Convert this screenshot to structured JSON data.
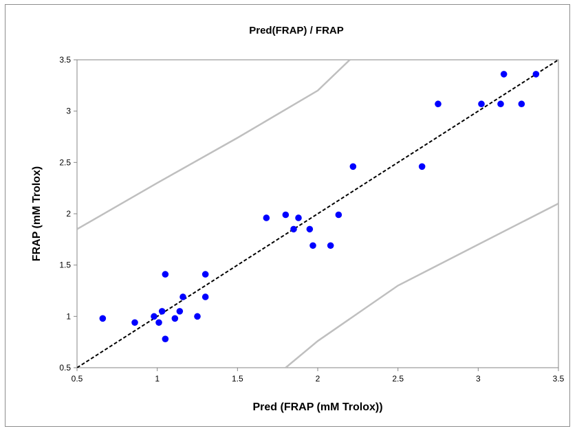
{
  "chart_data": {
    "type": "scatter",
    "title": "Pred(FRAP) / FRAP",
    "xlabel": "Pred (FRAP (mM Trolox))",
    "ylabel": "FRAP (mM Trolox)",
    "xlim": [
      0.5,
      3.5
    ],
    "ylim": [
      0.5,
      3.5
    ],
    "x_ticks": [
      "0.5",
      "1",
      "1.5",
      "2",
      "2.5",
      "3",
      "3.5"
    ],
    "y_ticks": [
      "0.5",
      "1",
      "1.5",
      "2",
      "2.5",
      "3",
      "3.5"
    ],
    "grid": false,
    "legend": "none",
    "colors": {
      "points": "#0000ff",
      "identity_line": "#000000",
      "bound_lines": "#bfbfbf"
    },
    "series": [
      {
        "values": [
          [
            0.66,
            0.98
          ],
          [
            0.86,
            0.94
          ],
          [
            0.98,
            1.0
          ],
          [
            1.01,
            0.94
          ],
          [
            1.03,
            1.05
          ],
          [
            1.05,
            0.78
          ],
          [
            1.05,
            1.41
          ],
          [
            1.11,
            0.98
          ],
          [
            1.14,
            1.05
          ],
          [
            1.16,
            1.19
          ],
          [
            1.25,
            1.0
          ],
          [
            1.3,
            1.41
          ],
          [
            1.3,
            1.19
          ],
          [
            1.68,
            1.96
          ],
          [
            1.8,
            1.99
          ],
          [
            1.85,
            1.85
          ],
          [
            1.88,
            1.96
          ],
          [
            1.95,
            1.85
          ],
          [
            1.97,
            1.69
          ],
          [
            2.08,
            1.69
          ],
          [
            2.13,
            1.99
          ],
          [
            2.22,
            2.46
          ],
          [
            2.65,
            2.46
          ],
          [
            2.75,
            3.07
          ],
          [
            3.02,
            3.07
          ],
          [
            3.14,
            3.07
          ],
          [
            3.16,
            3.36
          ],
          [
            3.27,
            3.07
          ],
          [
            3.36,
            3.36
          ]
        ]
      }
    ],
    "reference_lines": [
      {
        "style": "dashed",
        "points": [
          [
            0.5,
            0.5
          ],
          [
            3.5,
            3.5
          ]
        ]
      },
      {
        "style": "solid",
        "points": [
          [
            0.5,
            1.85
          ],
          [
            1.0,
            2.3
          ],
          [
            1.5,
            2.74
          ],
          [
            2.0,
            3.2
          ],
          [
            2.2,
            3.5
          ]
        ]
      },
      {
        "style": "solid",
        "points": [
          [
            1.8,
            0.5
          ],
          [
            2.0,
            0.76
          ],
          [
            2.5,
            1.3
          ],
          [
            3.0,
            1.7
          ],
          [
            3.5,
            2.1
          ]
        ]
      }
    ]
  }
}
